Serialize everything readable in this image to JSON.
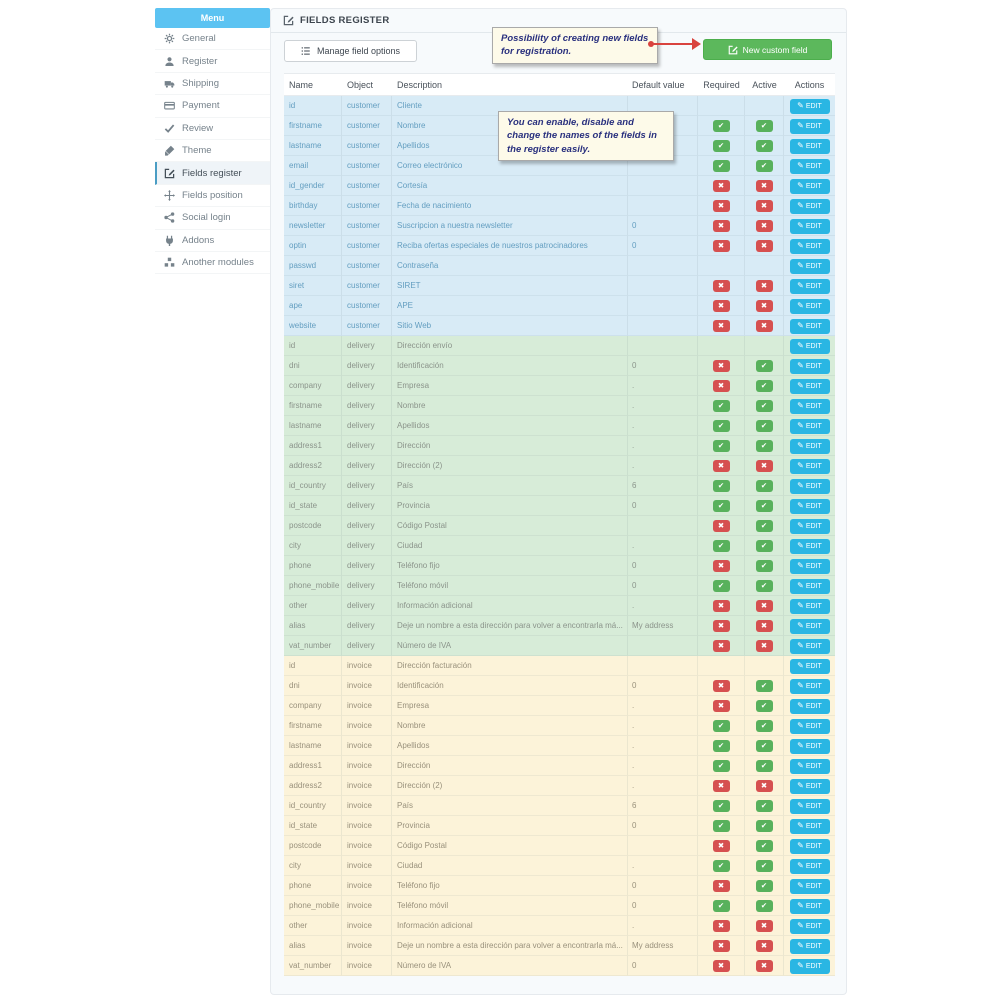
{
  "sidebar": {
    "header_label": "Menu",
    "items": [
      {
        "label": "General",
        "icon": "gears-icon",
        "active": false
      },
      {
        "label": "Register",
        "icon": "user-icon",
        "active": false
      },
      {
        "label": "Shipping",
        "icon": "truck-icon",
        "active": false
      },
      {
        "label": "Payment",
        "icon": "credit-card-icon",
        "active": false
      },
      {
        "label": "Review",
        "icon": "check-icon",
        "active": false
      },
      {
        "label": "Theme",
        "icon": "brush-icon",
        "active": false
      },
      {
        "label": "Fields register",
        "icon": "edit-icon",
        "active": true
      },
      {
        "label": "Fields position",
        "icon": "move-icon",
        "active": false
      },
      {
        "label": "Social login",
        "icon": "share-icon",
        "active": false
      },
      {
        "label": "Addons",
        "icon": "addons-icon",
        "active": false
      },
      {
        "label": "Another modules",
        "icon": "modules-icon",
        "active": false
      }
    ]
  },
  "panel": {
    "title": "FIELDS REGISTER",
    "manage_button_label": "Manage field options",
    "new_field_button_label": "New custom field"
  },
  "annotations": {
    "note1": "Possibility of creating new fields for registration.",
    "note2": "You can enable, disable and change the names of the fields in the register easily."
  },
  "table": {
    "headers": [
      "Name",
      "Object",
      "Description",
      "Default value",
      "Required",
      "Active",
      "Actions"
    ],
    "edit_button_label": "EDIT",
    "rows": [
      {
        "section": "customer",
        "name": "id",
        "object": "customer",
        "description": "Cliente",
        "default": "",
        "required": "",
        "active": ""
      },
      {
        "section": "customer",
        "name": "firstname",
        "object": "customer",
        "description": "Nombre",
        "default": "",
        "required": "yes",
        "active": "yes"
      },
      {
        "section": "customer",
        "name": "lastname",
        "object": "customer",
        "description": "Apellidos",
        "default": "",
        "required": "yes",
        "active": "yes"
      },
      {
        "section": "customer",
        "name": "email",
        "object": "customer",
        "description": "Correo electrónico",
        "default": "",
        "required": "yes",
        "active": "yes"
      },
      {
        "section": "customer",
        "name": "id_gender",
        "object": "customer",
        "description": "Cortesía",
        "default": "",
        "required": "no",
        "active": "no"
      },
      {
        "section": "customer",
        "name": "birthday",
        "object": "customer",
        "description": "Fecha de nacimiento",
        "default": "",
        "required": "no",
        "active": "no"
      },
      {
        "section": "customer",
        "name": "newsletter",
        "object": "customer",
        "description": "Suscripcion a nuestra newsletter",
        "default": "0",
        "required": "no",
        "active": "no"
      },
      {
        "section": "customer",
        "name": "optin",
        "object": "customer",
        "description": "Reciba ofertas especiales de nuestros patrocinadores",
        "default": "0",
        "required": "no",
        "active": "no"
      },
      {
        "section": "customer",
        "name": "passwd",
        "object": "customer",
        "description": "Contraseña",
        "default": "",
        "required": "",
        "active": ""
      },
      {
        "section": "customer",
        "name": "siret",
        "object": "customer",
        "description": "SIRET",
        "default": "",
        "required": "no",
        "active": "no"
      },
      {
        "section": "customer",
        "name": "ape",
        "object": "customer",
        "description": "APE",
        "default": "",
        "required": "no",
        "active": "no"
      },
      {
        "section": "customer",
        "name": "website",
        "object": "customer",
        "description": "Sitio Web",
        "default": "",
        "required": "no",
        "active": "no"
      },
      {
        "section": "delivery",
        "name": "id",
        "object": "delivery",
        "description": "Dirección envío",
        "default": "",
        "required": "",
        "active": ""
      },
      {
        "section": "delivery",
        "name": "dni",
        "object": "delivery",
        "description": "Identificación",
        "default": "0",
        "required": "no",
        "active": "yes"
      },
      {
        "section": "delivery",
        "name": "company",
        "object": "delivery",
        "description": "Empresa",
        "default": ".",
        "required": "no",
        "active": "yes"
      },
      {
        "section": "delivery",
        "name": "firstname",
        "object": "delivery",
        "description": "Nombre",
        "default": ".",
        "required": "yes",
        "active": "yes"
      },
      {
        "section": "delivery",
        "name": "lastname",
        "object": "delivery",
        "description": "Apellidos",
        "default": ".",
        "required": "yes",
        "active": "yes"
      },
      {
        "section": "delivery",
        "name": "address1",
        "object": "delivery",
        "description": "Dirección",
        "default": ".",
        "required": "yes",
        "active": "yes"
      },
      {
        "section": "delivery",
        "name": "address2",
        "object": "delivery",
        "description": "Dirección (2)",
        "default": ".",
        "required": "no",
        "active": "no"
      },
      {
        "section": "delivery",
        "name": "id_country",
        "object": "delivery",
        "description": "País",
        "default": "6",
        "required": "yes",
        "active": "yes"
      },
      {
        "section": "delivery",
        "name": "id_state",
        "object": "delivery",
        "description": "Provincia",
        "default": "0",
        "required": "yes",
        "active": "yes"
      },
      {
        "section": "delivery",
        "name": "postcode",
        "object": "delivery",
        "description": "Código Postal",
        "default": "",
        "required": "no",
        "active": "yes"
      },
      {
        "section": "delivery",
        "name": "city",
        "object": "delivery",
        "description": "Ciudad",
        "default": ".",
        "required": "yes",
        "active": "yes"
      },
      {
        "section": "delivery",
        "name": "phone",
        "object": "delivery",
        "description": "Teléfono fijo",
        "default": "0",
        "required": "no",
        "active": "yes"
      },
      {
        "section": "delivery",
        "name": "phone_mobile",
        "object": "delivery",
        "description": "Teléfono móvil",
        "default": "0",
        "required": "yes",
        "active": "yes"
      },
      {
        "section": "delivery",
        "name": "other",
        "object": "delivery",
        "description": "Información adicional",
        "default": ".",
        "required": "no",
        "active": "no"
      },
      {
        "section": "delivery",
        "name": "alias",
        "object": "delivery",
        "description": "Deje un nombre a esta dirección para volver a encontrarla má...",
        "default": "My address",
        "required": "no",
        "active": "no"
      },
      {
        "section": "delivery",
        "name": "vat_number",
        "object": "delivery",
        "description": "Número de IVA",
        "default": "",
        "required": "no",
        "active": "no"
      },
      {
        "section": "invoice",
        "name": "id",
        "object": "invoice",
        "description": "Dirección facturación",
        "default": "",
        "required": "",
        "active": ""
      },
      {
        "section": "invoice",
        "name": "dni",
        "object": "invoice",
        "description": "Identificación",
        "default": "0",
        "required": "no",
        "active": "yes"
      },
      {
        "section": "invoice",
        "name": "company",
        "object": "invoice",
        "description": "Empresa",
        "default": ".",
        "required": "no",
        "active": "yes"
      },
      {
        "section": "invoice",
        "name": "firstname",
        "object": "invoice",
        "description": "Nombre",
        "default": ".",
        "required": "yes",
        "active": "yes"
      },
      {
        "section": "invoice",
        "name": "lastname",
        "object": "invoice",
        "description": "Apellidos",
        "default": ".",
        "required": "yes",
        "active": "yes"
      },
      {
        "section": "invoice",
        "name": "address1",
        "object": "invoice",
        "description": "Dirección",
        "default": ".",
        "required": "yes",
        "active": "yes"
      },
      {
        "section": "invoice",
        "name": "address2",
        "object": "invoice",
        "description": "Dirección (2)",
        "default": ".",
        "required": "no",
        "active": "no"
      },
      {
        "section": "invoice",
        "name": "id_country",
        "object": "invoice",
        "description": "País",
        "default": "6",
        "required": "yes",
        "active": "yes"
      },
      {
        "section": "invoice",
        "name": "id_state",
        "object": "invoice",
        "description": "Provincia",
        "default": "0",
        "required": "yes",
        "active": "yes"
      },
      {
        "section": "invoice",
        "name": "postcode",
        "object": "invoice",
        "description": "Código Postal",
        "default": "",
        "required": "no",
        "active": "yes"
      },
      {
        "section": "invoice",
        "name": "city",
        "object": "invoice",
        "description": "Ciudad",
        "default": ".",
        "required": "yes",
        "active": "yes"
      },
      {
        "section": "invoice",
        "name": "phone",
        "object": "invoice",
        "description": "Teléfono fijo",
        "default": "0",
        "required": "no",
        "active": "yes"
      },
      {
        "section": "invoice",
        "name": "phone_mobile",
        "object": "invoice",
        "description": "Teléfono móvil",
        "default": "0",
        "required": "yes",
        "active": "yes"
      },
      {
        "section": "invoice",
        "name": "other",
        "object": "invoice",
        "description": "Información adicional",
        "default": ".",
        "required": "no",
        "active": "no"
      },
      {
        "section": "invoice",
        "name": "alias",
        "object": "invoice",
        "description": "Deje un nombre a esta dirección para volver a encontrarla má...",
        "default": "My address",
        "required": "no",
        "active": "no"
      },
      {
        "section": "invoice",
        "name": "vat_number",
        "object": "invoice",
        "description": "Número de IVA",
        "default": "0",
        "required": "no",
        "active": "no"
      }
    ]
  },
  "colors": {
    "menu_header_bg": "#5cc3f2",
    "customer_row_bg": "#d8ebf6",
    "delivery_row_bg": "#d7ecd8",
    "invoice_row_bg": "#fcf3d9",
    "required_yes": "#58b15c",
    "required_no": "#d65050",
    "edit_button_bg": "#2ab6e3",
    "new_button_bg": "#5cb85c",
    "arrow_red": "#d9433e",
    "note_text": "#29307e",
    "note_bg": "#fdfae9"
  }
}
